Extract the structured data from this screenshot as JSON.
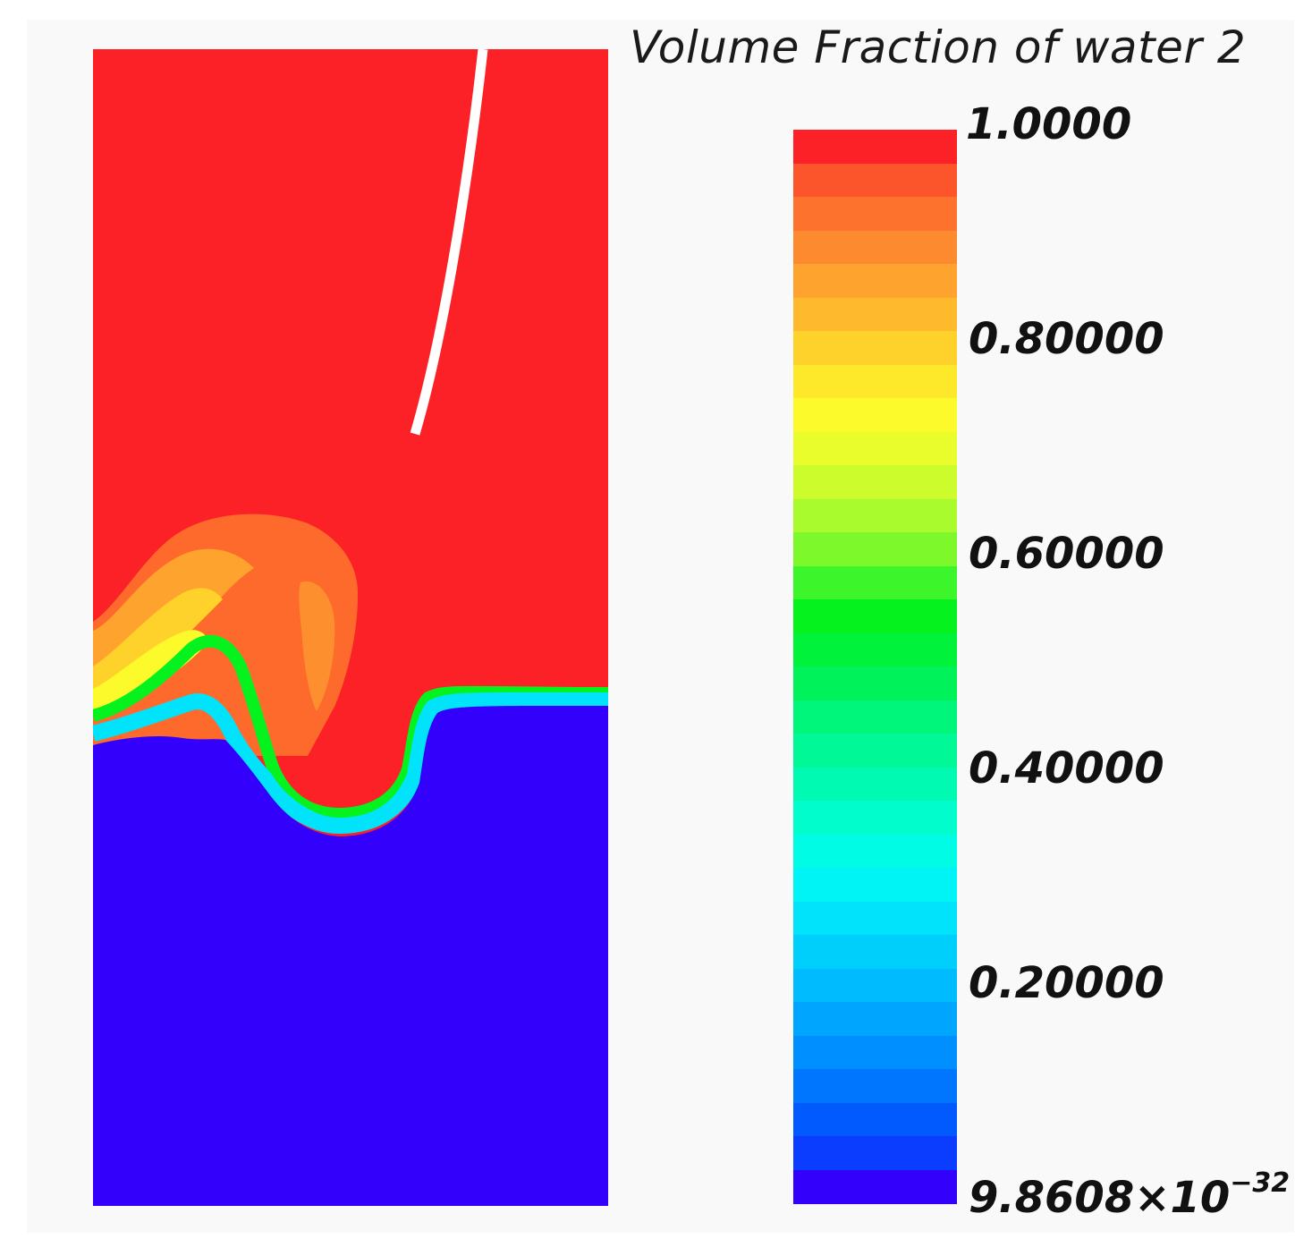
{
  "legend": {
    "title": "Volume Fraction of water 2",
    "ticks": [
      {
        "value": 1.0,
        "label": "1.0000"
      },
      {
        "value": 0.8,
        "label": "0.80000"
      },
      {
        "value": 0.6,
        "label": "0.60000"
      },
      {
        "value": 0.4,
        "label": "0.40000"
      },
      {
        "value": 0.2,
        "label": "0.20000"
      },
      {
        "value": 0.0,
        "mantissa": "9.8608×10",
        "exponent": "−32"
      }
    ],
    "band_colors": [
      "#fb2127",
      "#fc552c",
      "#fd722d",
      "#fd8a2e",
      "#fea32d",
      "#feba2c",
      "#fed12b",
      "#fde82a",
      "#fdfa2b",
      "#eafd2c",
      "#cdfc2d",
      "#a9fb2d",
      "#7cf82b",
      "#3cf52a",
      "#06f21f",
      "#00f23a",
      "#00f25a",
      "#00f57b",
      "#00f897",
      "#00fab1",
      "#00fdcb",
      "#00fce4",
      "#00f4f6",
      "#00e3fa",
      "#00cffc",
      "#00bbfd",
      "#00a5fe",
      "#008ffe",
      "#0076fe",
      "#005afe",
      "#0a3dfd",
      "#3200fb"
    ]
  },
  "colors": {
    "phase_water2": "#fb2127",
    "phase_water1": "#3200fb"
  }
}
